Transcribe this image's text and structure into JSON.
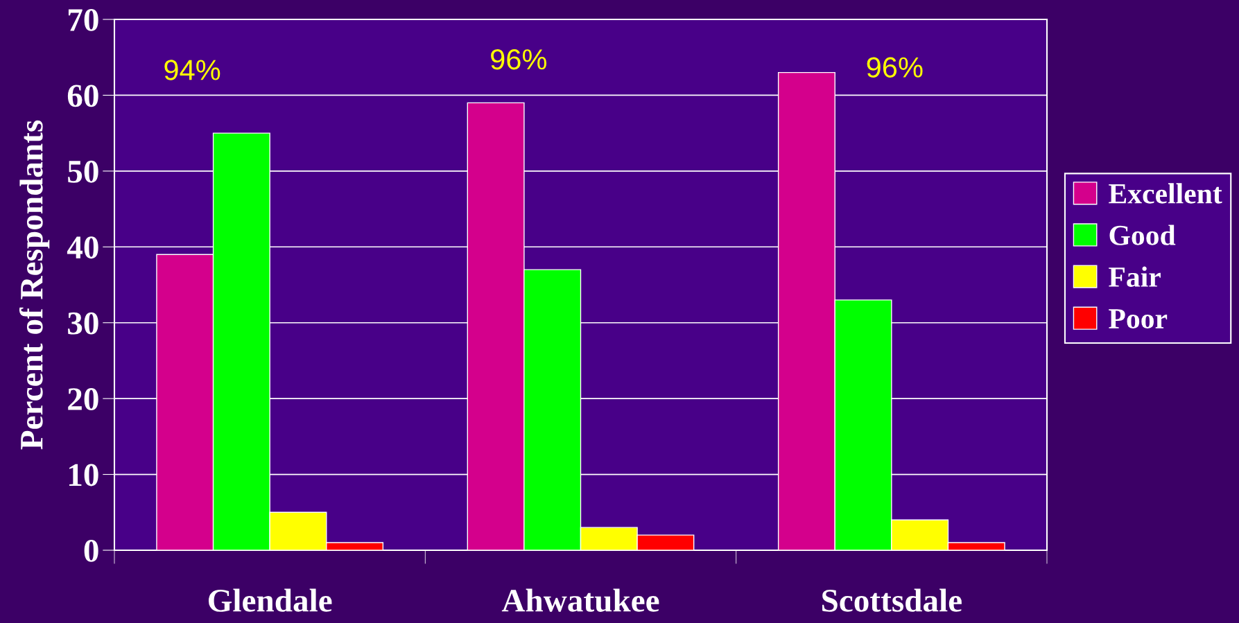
{
  "chart_data": {
    "type": "bar",
    "ylabel": "Percent of Respondants",
    "categories": [
      "Glendale",
      "Ahwatukee",
      "Scottsdale"
    ],
    "series": [
      {
        "name": "Excellent",
        "color": "#d4008c",
        "values": [
          39,
          59,
          63
        ]
      },
      {
        "name": "Good",
        "color": "#00ff00",
        "values": [
          55,
          37,
          33
        ]
      },
      {
        "name": "Fair",
        "color": "#ffff00",
        "values": [
          5,
          3,
          4
        ]
      },
      {
        "name": "Poor",
        "color": "#ff0000",
        "values": [
          1,
          2,
          1
        ]
      }
    ],
    "ylim": [
      0,
      70
    ],
    "yticks": [
      0,
      10,
      20,
      30,
      40,
      50,
      60,
      70
    ],
    "grid": "y",
    "legend": "right",
    "annotations": [
      "94%",
      "96%",
      "96%"
    ]
  }
}
